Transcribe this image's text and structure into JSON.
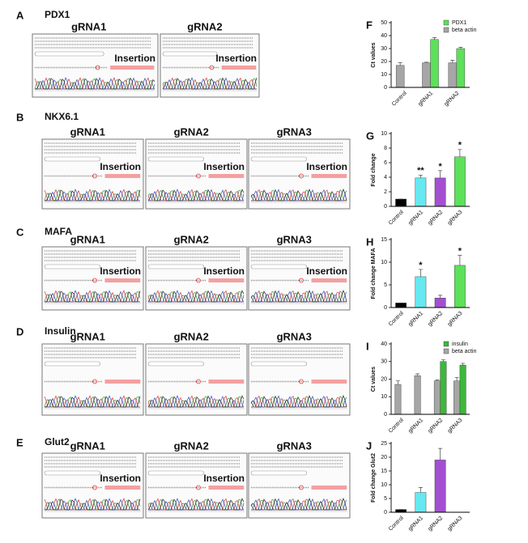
{
  "panels": [
    {
      "letter": "A",
      "gene": "PDX1",
      "images": [
        {
          "guide": "gRNA1",
          "label": "Insertion"
        },
        {
          "guide": "gRNA2",
          "label": "Insertion"
        }
      ]
    },
    {
      "letter": "B",
      "gene": "NKX6.1",
      "images": [
        {
          "guide": "gRNA1",
          "label": "Insertion"
        },
        {
          "guide": "gRNA2",
          "label": "Insertion"
        },
        {
          "guide": "gRNA3",
          "label": "Insertion"
        }
      ]
    },
    {
      "letter": "C",
      "gene": "MAFA",
      "images": [
        {
          "guide": "gRNA1",
          "label": "Insertion"
        },
        {
          "guide": "gRNA2",
          "label": "Insertion"
        },
        {
          "guide": "gRNA3",
          "label": "Insertion"
        }
      ]
    },
    {
      "letter": "D",
      "gene": "Insulin",
      "images": [
        {
          "guide": "gRNA1"
        },
        {
          "guide": "gRNA2"
        },
        {
          "guide": "gRNA3"
        }
      ]
    },
    {
      "letter": "E",
      "gene": "Glut2",
      "images": [
        {
          "guide": "gRNA1",
          "label": "Insertion"
        },
        {
          "guide": "gRNA2",
          "label": "Insertion"
        },
        {
          "guide": "gRNA3"
        }
      ]
    }
  ],
  "chart_data": [
    {
      "type": "bar",
      "panel": "F",
      "y_label": "Ct values",
      "categories": [
        "Control",
        "gRNA1",
        "gRNA2"
      ],
      "series": [
        {
          "name": "PDX1",
          "color": "#5de05a",
          "values": [
            null,
            37,
            30
          ],
          "errors": [
            null,
            1.5,
            1
          ]
        },
        {
          "name": "beta actin",
          "color": "#a6a6a6",
          "values": [
            17,
            19,
            19
          ],
          "errors": [
            2,
            0.5,
            2
          ]
        }
      ],
      "ylim": [
        0,
        50
      ],
      "yticks": [
        0,
        10,
        20,
        30,
        40,
        50
      ],
      "legend": "top-right"
    },
    {
      "type": "bar",
      "panel": "G",
      "y_label": "Fold change",
      "categories": [
        "Control",
        "gRNA1",
        "gRNA2",
        "gRNA3"
      ],
      "values": [
        1,
        3.9,
        3.9,
        6.8
      ],
      "errors": [
        0,
        0.4,
        1,
        1
      ],
      "colors": [
        "#000000",
        "#66e8f0",
        "#a44fd0",
        "#5de05a"
      ],
      "annotations": [
        null,
        "**",
        "*",
        "*"
      ],
      "ylim": [
        0,
        10
      ],
      "yticks": [
        0,
        2,
        4,
        6,
        8,
        10
      ]
    },
    {
      "type": "bar",
      "panel": "H",
      "y_label": "Fold change MAFA",
      "categories": [
        "Control",
        "gRNA1",
        "gRNA2",
        "gRNA3"
      ],
      "values": [
        1,
        6.8,
        2.1,
        9.3
      ],
      "errors": [
        0,
        1.6,
        0.6,
        2.2
      ],
      "colors": [
        "#000000",
        "#66e8f0",
        "#a44fd0",
        "#5de05a"
      ],
      "annotations": [
        null,
        "*",
        null,
        "*"
      ],
      "ylim": [
        0,
        15
      ],
      "yticks": [
        0,
        5,
        10,
        15
      ]
    },
    {
      "type": "bar",
      "panel": "I",
      "y_label": "Ct values",
      "categories": [
        "Control",
        "gRNA1",
        "gRNA2",
        "gRNA3"
      ],
      "series": [
        {
          "name": "insulin",
          "color": "#3cb83a",
          "values": [
            null,
            null,
            30,
            28
          ],
          "errors": [
            null,
            null,
            1,
            1
          ]
        },
        {
          "name": "beta actin",
          "color": "#a6a6a6",
          "values": [
            17,
            22,
            19,
            19
          ],
          "errors": [
            2,
            1,
            0.5,
            2
          ]
        }
      ],
      "ylim": [
        0,
        40
      ],
      "yticks": [
        0,
        10,
        20,
        30,
        40
      ],
      "legend": "top-right"
    },
    {
      "type": "bar",
      "panel": "J",
      "y_label": "Fold change Glut2",
      "categories": [
        "Control",
        "gRNA1",
        "gRNA2",
        "gRNA3"
      ],
      "values": [
        1,
        7.2,
        19,
        null
      ],
      "errors": [
        0,
        1.8,
        4.2,
        null
      ],
      "colors": [
        "#000000",
        "#66e8f0",
        "#a44fd0",
        "#5de05a"
      ],
      "ylim": [
        0,
        25
      ],
      "yticks": [
        0,
        5,
        10,
        15,
        20,
        25
      ]
    }
  ]
}
